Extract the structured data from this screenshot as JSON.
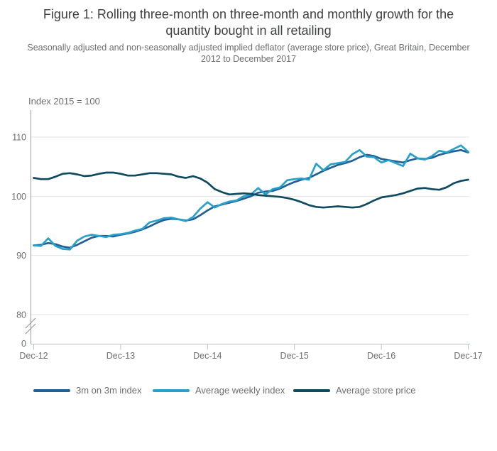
{
  "chart_data": {
    "type": "line",
    "title": "Figure 1: Rolling three-month on three-month and monthly growth for the quantity bought in all retailing",
    "subtitle": "Seasonally adjusted and non-seasonally adjusted implied deflator (average store price), Great Britain, December 2012 to December 2017",
    "axis_unit_label": "Index 2015 = 100",
    "x_tick_labels": [
      "Dec-12",
      "Dec-13",
      "Dec-14",
      "Dec-15",
      "Dec-16",
      "Dec-17"
    ],
    "x_frequency": "monthly",
    "y_tick_labels": [
      "110",
      "100",
      "90",
      "80"
    ],
    "y_zero_label": "0",
    "y_axis_break": true,
    "ylim": [
      80,
      113
    ],
    "grid": "horizontal",
    "legend_position": "bottom",
    "series": [
      {
        "name": "3m on 3m index",
        "color": "#206095",
        "values": [
          91.7,
          91.8,
          92.1,
          91.9,
          91.5,
          91.3,
          91.8,
          92.4,
          93.0,
          93.3,
          93.3,
          93.2,
          93.5,
          93.7,
          94.0,
          94.4,
          94.9,
          95.5,
          96.0,
          96.2,
          96.1,
          95.9,
          96.1,
          96.8,
          97.6,
          98.3,
          98.6,
          98.9,
          99.2,
          99.6,
          100.0,
          100.6,
          100.8,
          100.9,
          101.3,
          101.9,
          102.4,
          102.8,
          103.1,
          103.7,
          104.3,
          104.8,
          105.3,
          105.6,
          106.0,
          106.6,
          107.0,
          106.8,
          106.3,
          106.1,
          105.9,
          105.7,
          106.1,
          106.4,
          106.3,
          106.5,
          107.0,
          107.3,
          107.6,
          107.8,
          107.4
        ]
      },
      {
        "name": "Average weekly index",
        "color": "#27a0cc",
        "values": [
          91.7,
          91.6,
          92.9,
          91.6,
          91.1,
          91.0,
          92.5,
          93.2,
          93.5,
          93.3,
          93.1,
          93.5,
          93.6,
          93.8,
          94.2,
          94.5,
          95.6,
          95.9,
          96.3,
          96.4,
          96.1,
          95.8,
          96.5,
          97.9,
          99.0,
          98.1,
          98.7,
          99.1,
          99.3,
          100.0,
          100.3,
          101.4,
          100.3,
          101.2,
          101.5,
          102.7,
          102.9,
          103.0,
          102.8,
          105.5,
          104.4,
          105.4,
          105.6,
          105.8,
          107.1,
          107.8,
          106.7,
          106.6,
          105.7,
          106.1,
          105.6,
          105.1,
          107.2,
          106.4,
          106.2,
          106.8,
          107.7,
          107.4,
          108.0,
          108.6,
          107.5
        ]
      },
      {
        "name": "Average store price",
        "color": "#0e4a60",
        "values": [
          103.1,
          102.9,
          102.9,
          103.3,
          103.8,
          103.9,
          103.7,
          103.4,
          103.5,
          103.8,
          104.0,
          104.0,
          103.8,
          103.5,
          103.5,
          103.7,
          103.9,
          103.9,
          103.8,
          103.7,
          103.3,
          103.1,
          103.4,
          103.0,
          102.3,
          101.2,
          100.7,
          100.3,
          100.4,
          100.5,
          100.4,
          100.2,
          100.1,
          100.0,
          99.9,
          99.7,
          99.4,
          99.0,
          98.5,
          98.2,
          98.1,
          98.2,
          98.3,
          98.2,
          98.1,
          98.2,
          98.7,
          99.3,
          99.8,
          100.0,
          100.2,
          100.5,
          100.9,
          101.3,
          101.4,
          101.2,
          101.1,
          101.5,
          102.2,
          102.6,
          102.8
        ]
      }
    ]
  },
  "palette": {
    "grid": "#e3e3e3",
    "y_axis": "#9b9b9b",
    "x_axis": "#b9c5d3",
    "tick_text": "#6d6e71",
    "title_text": "#3e3f41",
    "subtitle_text": "#6d6e71"
  }
}
